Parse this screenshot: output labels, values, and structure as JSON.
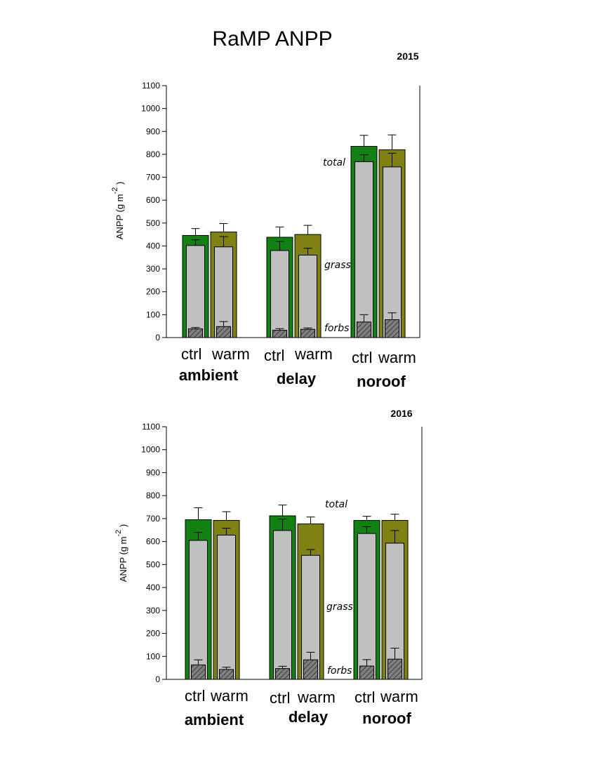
{
  "title": "RaMP ANPP",
  "colors": {
    "ctrl": "#138013",
    "warm": "#808013",
    "grass": "#c0c0c0",
    "forbs": "#808080",
    "axis": "#000000"
  },
  "chart_data": [
    {
      "type": "bar",
      "subtype": "overlaid-stacked",
      "year_label": "2015",
      "ylabel_main": "ANPP (g m",
      "ylabel_sup": "-2",
      "ylabel_close": ")",
      "ylim": [
        0,
        1100
      ],
      "yticks": [
        0,
        100,
        200,
        300,
        400,
        500,
        600,
        700,
        800,
        900,
        1000,
        1100
      ],
      "annotations": {
        "total": "total",
        "grass": "grass",
        "forbs": "forbs"
      },
      "groups": [
        {
          "name": "ambient",
          "treatments": [
            "ctrl",
            "warm"
          ]
        },
        {
          "name": "delay",
          "treatments": [
            "ctrl",
            "warm"
          ]
        },
        {
          "name": "noroof",
          "treatments": [
            "ctrl",
            "warm"
          ]
        }
      ],
      "series": [
        {
          "name": "total",
          "values": [
            446,
            461,
            438,
            450,
            835,
            820
          ],
          "errors": [
            30,
            37,
            45,
            40,
            48,
            65
          ]
        },
        {
          "name": "grass",
          "values": [
            402,
            396,
            380,
            360,
            768,
            745
          ],
          "errors": [
            25,
            45,
            40,
            30,
            30,
            60
          ]
        },
        {
          "name": "forbs",
          "values": [
            38,
            48,
            32,
            36,
            68,
            78
          ],
          "errors": [
            6,
            22,
            7,
            6,
            32,
            30
          ]
        }
      ]
    },
    {
      "type": "bar",
      "subtype": "overlaid-stacked",
      "year_label": "2016",
      "ylabel_main": "ANPP (g m",
      "ylabel_sup": "-2",
      "ylabel_close": ")",
      "ylim": [
        0,
        1100
      ],
      "yticks": [
        0,
        100,
        200,
        300,
        400,
        500,
        600,
        700,
        800,
        900,
        1000,
        1100
      ],
      "annotations": {
        "total": "total",
        "grass": "grass",
        "forbs": "forbs"
      },
      "groups": [
        {
          "name": "ambient",
          "treatments": [
            "ctrl",
            "warm"
          ]
        },
        {
          "name": "delay",
          "treatments": [
            "ctrl",
            "warm"
          ]
        },
        {
          "name": "noroof",
          "treatments": [
            "ctrl",
            "warm"
          ]
        }
      ],
      "series": [
        {
          "name": "total",
          "values": [
            695,
            692,
            712,
            677,
            692,
            692
          ],
          "errors": [
            52,
            38,
            47,
            30,
            18,
            27
          ]
        },
        {
          "name": "grass",
          "values": [
            605,
            628,
            648,
            540,
            635,
            593
          ],
          "errors": [
            35,
            30,
            50,
            25,
            30,
            55
          ]
        },
        {
          "name": "forbs",
          "values": [
            63,
            43,
            47,
            85,
            58,
            88
          ],
          "errors": [
            22,
            10,
            10,
            33,
            28,
            48
          ]
        }
      ]
    }
  ]
}
